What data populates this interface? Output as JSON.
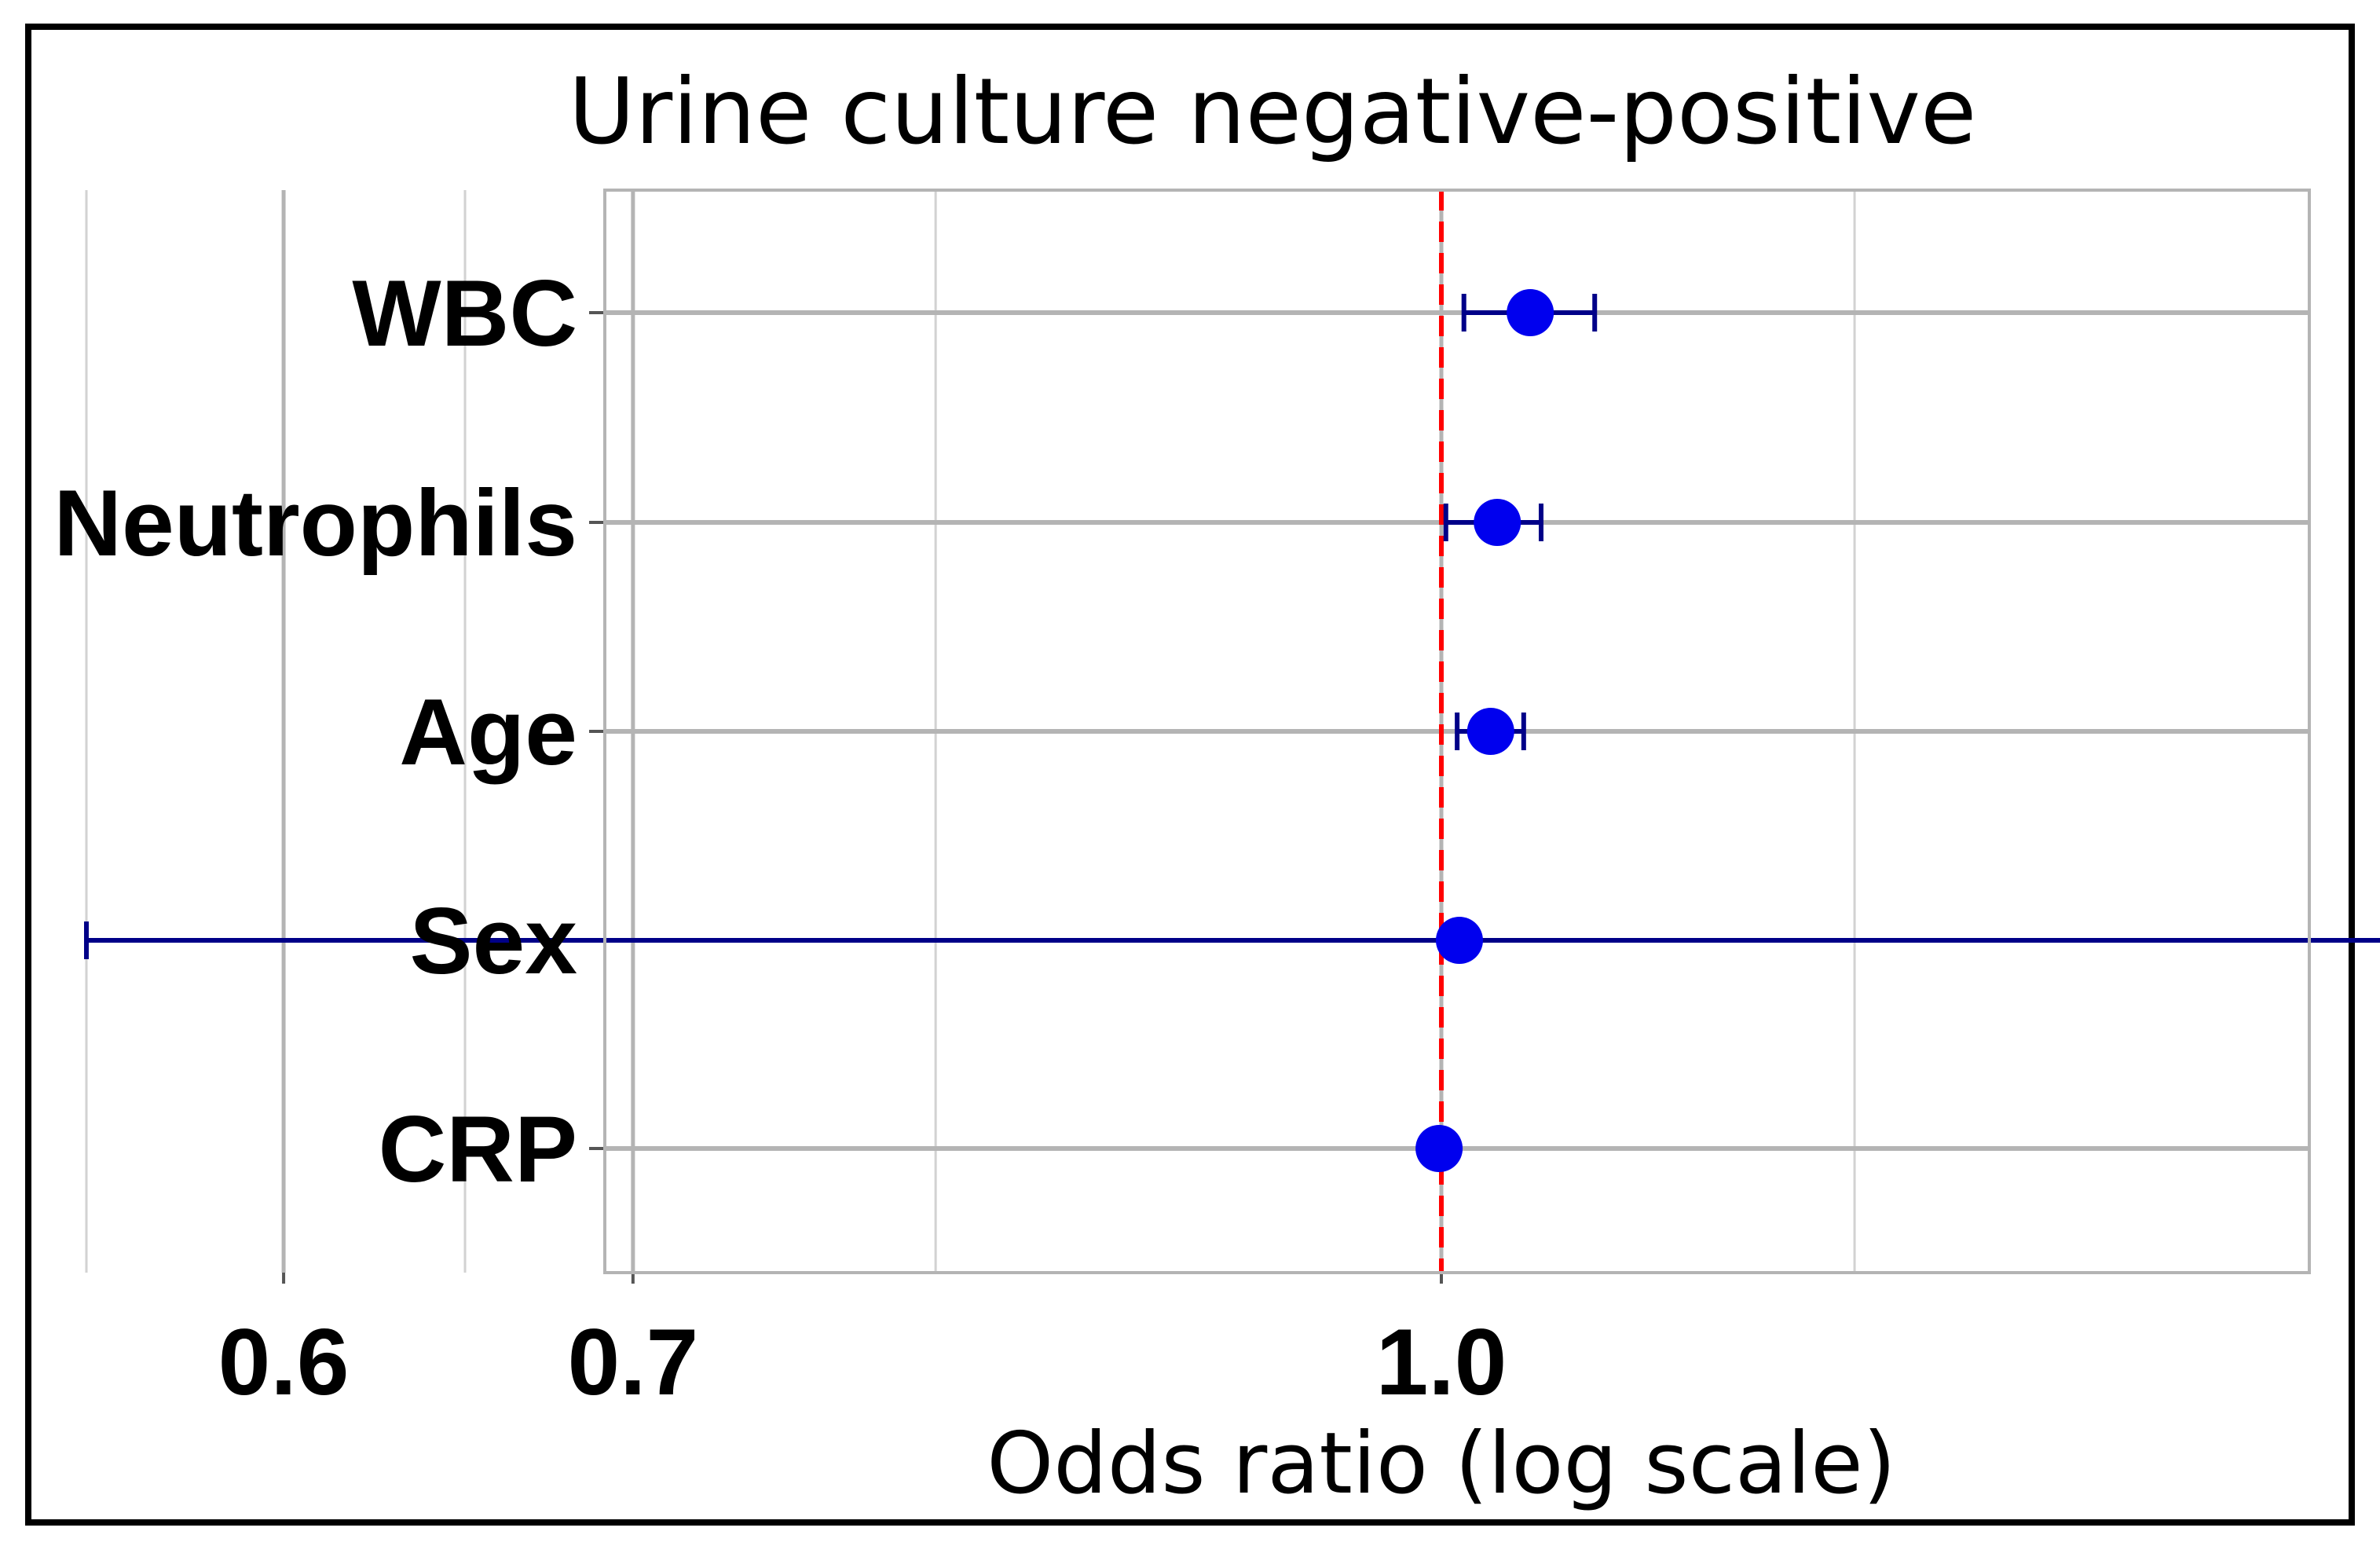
{
  "chart_data": {
    "type": "scatter",
    "title": "Urine culture negative-positive",
    "xlabel": "Odds ratio (log scale)",
    "ylabel": "",
    "x_scale": "log",
    "xlim": [
      0.5,
      2.1
    ],
    "x_ticks": [
      {
        "value": 0.6,
        "label": "0.6"
      },
      {
        "value": 0.7,
        "label": "0.7"
      },
      {
        "value": 1.0,
        "label": "1.0"
      }
    ],
    "grid": true,
    "reference_line": {
      "value": 1.0,
      "color": "#ff0000",
      "style": "dashed"
    },
    "categories": [
      "WBC",
      "Neutrophils",
      "Age",
      "Sex",
      "CRP"
    ],
    "series": [
      {
        "points": [
          {
            "label": "WBC",
            "value": 1.04,
            "ci": [
              1.01,
              1.07
            ]
          },
          {
            "label": "Neutrophils",
            "value": 1.025,
            "ci": [
              1.002,
              1.045
            ]
          },
          {
            "label": "Age",
            "value": 1.022,
            "ci": [
              1.007,
              1.037
            ]
          },
          {
            "label": "Sex",
            "value": 1.008,
            "ci": [
              0.55,
              2.0
            ]
          },
          {
            "label": "CRP",
            "value": 0.999,
            "ci": [
              0.998,
              1.001
            ]
          }
        ],
        "marker_color": "#0000ee",
        "errorbar_color": "#000088"
      }
    ]
  }
}
